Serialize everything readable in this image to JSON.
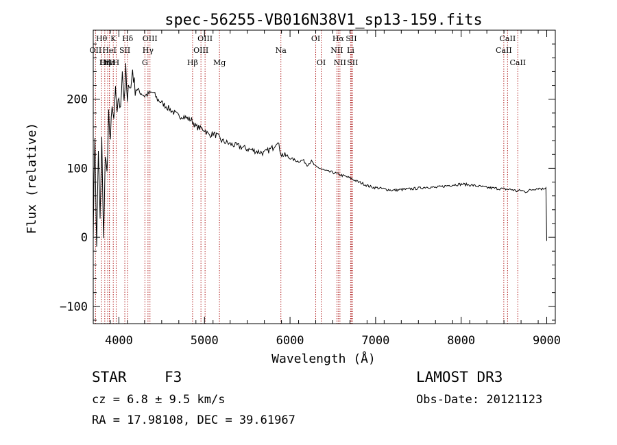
{
  "chart_data": {
    "type": "line",
    "title": "spec-56255-VB016N38V1_sp13-159.fits",
    "xlabel": "Wavelength (Å)",
    "ylabel": "Flux (relative)",
    "xlim": [
      3700,
      9100
    ],
    "ylim": [
      -125,
      300
    ],
    "xticks": [
      4000,
      5000,
      6000,
      7000,
      8000,
      9000
    ],
    "yticks": [
      -100,
      0,
      100,
      200
    ],
    "grid": false,
    "line_color": "#000000",
    "marker_color": "#b22222",
    "series": [
      {
        "name": "flux",
        "x": [
          3700,
          3720,
          3740,
          3760,
          3780,
          3800,
          3820,
          3840,
          3860,
          3880,
          3900,
          3920,
          3940,
          3960,
          3980,
          4000,
          4020,
          4040,
          4060,
          4080,
          4100,
          4120,
          4140,
          4160,
          4180,
          4200,
          4250,
          4300,
          4350,
          4400,
          4450,
          4500,
          4550,
          4600,
          4650,
          4700,
          4750,
          4800,
          4850,
          4900,
          4950,
          5000,
          5050,
          5100,
          5150,
          5200,
          5300,
          5400,
          5500,
          5600,
          5700,
          5800,
          5850,
          5900,
          5950,
          6000,
          6050,
          6100,
          6150,
          6200,
          6250,
          6300,
          6350,
          6400,
          6450,
          6500,
          6550,
          6600,
          6650,
          6700,
          6750,
          6800,
          6850,
          6900,
          6950,
          7000,
          7100,
          7200,
          7300,
          7400,
          7500,
          7600,
          7700,
          7800,
          7900,
          8000,
          8100,
          8200,
          8300,
          8400,
          8500,
          8600,
          8650,
          8700,
          8750,
          8800,
          8850,
          8900,
          8950,
          8990,
          9000
        ],
        "y": [
          10,
          150,
          -20,
          130,
          20,
          140,
          -10,
          120,
          90,
          180,
          130,
          200,
          160,
          215,
          170,
          205,
          180,
          250,
          200,
          240,
          190,
          230,
          215,
          245,
          220,
          215,
          210,
          205,
          208,
          210,
          200,
          195,
          190,
          185,
          180,
          175,
          176,
          172,
          170,
          160,
          158,
          156,
          148,
          150,
          147,
          140,
          135,
          132,
          128,
          125,
          122,
          130,
          140,
          120,
          118,
          115,
          112,
          110,
          112,
          105,
          110,
          102,
          100,
          97,
          95,
          94,
          92,
          90,
          88,
          86,
          83,
          80,
          78,
          75,
          73,
          72,
          70,
          68,
          69,
          70,
          71,
          73,
          72,
          74,
          76,
          77,
          76,
          74,
          72,
          71,
          70,
          69,
          67,
          68,
          66,
          68,
          70,
          71,
          70,
          72,
          -5
        ]
      }
    ],
    "lines": [
      {
        "label": "Hθ",
        "wl": 3797,
        "row": 0
      },
      {
        "label": "OII",
        "wl": 3727,
        "row": 1
      },
      {
        "label": "OIII",
        "wl": 3869,
        "row": 2
      },
      {
        "label": "Hε",
        "wl": 3889,
        "row": 2
      },
      {
        "label": "Hη",
        "wl": 3835,
        "row": 2
      },
      {
        "label": "HeI",
        "wl": 3889,
        "row": 1
      },
      {
        "label": "K",
        "wl": 3934,
        "row": 0
      },
      {
        "label": "H",
        "wl": 3968,
        "row": 2
      },
      {
        "label": "SII",
        "wl": 4069,
        "row": 1
      },
      {
        "label": "Hδ",
        "wl": 4102,
        "row": 0
      },
      {
        "label": "OIII",
        "wl": 4363,
        "row": 0
      },
      {
        "label": "Hγ",
        "wl": 4340,
        "row": 1
      },
      {
        "label": "G",
        "wl": 4304,
        "row": 2
      },
      {
        "label": "OIII",
        "wl": 5007,
        "row": 0
      },
      {
        "label": "OIII",
        "wl": 4959,
        "row": 1
      },
      {
        "label": "Hβ",
        "wl": 4861,
        "row": 2
      },
      {
        "label": "Mg",
        "wl": 5175,
        "row": 2
      },
      {
        "label": "Na",
        "wl": 5893,
        "row": 1
      },
      {
        "label": "OI",
        "wl": 6300,
        "row": 0
      },
      {
        "label": "OI",
        "wl": 6364,
        "row": 2
      },
      {
        "label": "Hα",
        "wl": 6563,
        "row": 0
      },
      {
        "label": "NII",
        "wl": 6548,
        "row": 1
      },
      {
        "label": "NII",
        "wl": 6583,
        "row": 2
      },
      {
        "label": "SII",
        "wl": 6716,
        "row": 0
      },
      {
        "label": "Li",
        "wl": 6708,
        "row": 1
      },
      {
        "label": "SII",
        "wl": 6731,
        "row": 2
      },
      {
        "label": "CaII",
        "wl": 8542,
        "row": 0
      },
      {
        "label": "CaII",
        "wl": 8498,
        "row": 1
      },
      {
        "label": "CaII",
        "wl": 8662,
        "row": 2
      }
    ]
  },
  "info": {
    "object_class": "STAR",
    "subclass": "F3",
    "survey": "LAMOST DR3",
    "cz_line": "cz = 6.8 ± 9.5 km/s",
    "obs_date": "Obs-Date: 20121123",
    "coords_line": "RA =  17.98108, DEC =  39.61967"
  }
}
